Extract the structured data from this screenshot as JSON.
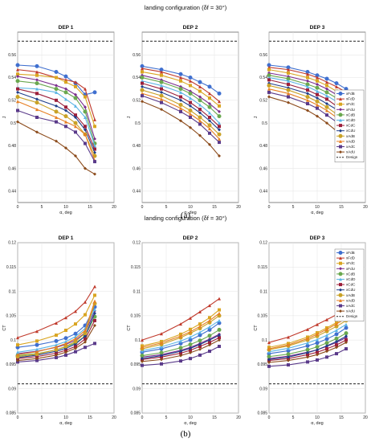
{
  "figure": {
    "part_a_label": "(a)",
    "part_b_label": "(b)"
  },
  "legend_entries": [
    "xFdB",
    "xFdD",
    "xFdC",
    "xFdU",
    "xCdB",
    "xCdD",
    "xCdC",
    "xCdU",
    "xAdB",
    "xAdD",
    "xAdC",
    "xAdU",
    "Design"
  ],
  "series_colors": [
    "#3f6fcf",
    "#c0392b",
    "#d9a521",
    "#7b2d8e",
    "#6aa84f",
    "#5ab4e5",
    "#9c1f3a",
    "#1f3f8a",
    "#c9a227",
    "#e67e22",
    "#5a3a8a",
    "#8b4a1a"
  ],
  "chart_data": [
    {
      "type": "line",
      "title": "landing configuration (δf = 30°)",
      "panel_title": "DEP 1",
      "xlabel": "α, deg",
      "ylabel": "J",
      "xlim": [
        0,
        20
      ],
      "ylim": [
        0.43,
        0.58
      ],
      "x_ticks": [
        0,
        5,
        10,
        15,
        20
      ],
      "y_ticks": [
        0.44,
        0.46,
        0.48,
        0.5,
        0.52,
        0.54,
        0.56
      ],
      "y_tick_labels": [
        "0.44",
        "0.46",
        "0.48",
        "0.5",
        "0.52",
        "0.54",
        "0.56"
      ],
      "design": 0.572,
      "x": [
        0,
        4,
        8,
        10,
        12,
        14,
        16
      ],
      "series": [
        {
          "values": [
            0.551,
            0.55,
            0.545,
            0.541,
            0.535,
            0.525,
            0.527
          ]
        },
        {
          "values": [
            0.547,
            0.545,
            0.54,
            0.538,
            0.536,
            0.53,
            0.503
          ]
        },
        {
          "values": [
            0.543,
            0.542,
            0.54,
            0.536,
            0.532,
            0.523,
            0.497
          ]
        },
        {
          "values": [
            0.541,
            0.538,
            0.533,
            0.53,
            0.525,
            0.514,
            0.486
          ]
        },
        {
          "values": [
            0.537,
            0.535,
            0.53,
            0.527,
            0.522,
            0.51,
            0.482
          ]
        },
        {
          "values": [
            0.531,
            0.53,
            0.527,
            0.521,
            0.515,
            0.505,
            0.48
          ]
        },
        {
          "values": [
            0.53,
            0.526,
            0.52,
            0.514,
            0.507,
            0.497,
            0.477
          ]
        },
        {
          "values": [
            0.527,
            0.521,
            0.515,
            0.511,
            0.505,
            0.494,
            0.474
          ]
        },
        {
          "values": [
            0.523,
            0.518,
            0.51,
            0.506,
            0.5,
            0.49,
            0.471
          ]
        },
        {
          "values": [
            0.519,
            0.512,
            0.505,
            0.501,
            0.497,
            0.49,
            0.467
          ]
        },
        {
          "values": [
            0.511,
            0.505,
            0.501,
            0.497,
            0.492,
            0.482,
            0.466
          ]
        },
        {
          "values": [
            0.501,
            0.492,
            0.484,
            0.478,
            0.471,
            0.46,
            0.455
          ]
        }
      ]
    },
    {
      "type": "line",
      "panel_title": "DEP 2",
      "xlabel": "α, deg",
      "ylabel": "J",
      "xlim": [
        0,
        20
      ],
      "ylim": [
        0.43,
        0.58
      ],
      "x_ticks": [
        0,
        5,
        10,
        15,
        20
      ],
      "y_ticks": [
        0.44,
        0.46,
        0.48,
        0.5,
        0.52,
        0.54,
        0.56
      ],
      "y_tick_labels": [
        "0.44",
        "0.46",
        "0.48",
        "0.5",
        "0.52",
        "0.54",
        "0.56"
      ],
      "design": 0.572,
      "x": [
        0,
        4,
        8,
        10,
        12,
        14,
        16
      ],
      "series": [
        {
          "values": [
            0.55,
            0.547,
            0.543,
            0.54,
            0.536,
            0.532,
            0.526
          ]
        },
        {
          "values": [
            0.548,
            0.545,
            0.54,
            0.537,
            0.532,
            0.526,
            0.519
          ]
        },
        {
          "values": [
            0.545,
            0.542,
            0.537,
            0.533,
            0.528,
            0.522,
            0.515
          ]
        },
        {
          "values": [
            0.542,
            0.538,
            0.532,
            0.528,
            0.523,
            0.517,
            0.51
          ]
        },
        {
          "values": [
            0.54,
            0.536,
            0.53,
            0.526,
            0.52,
            0.514,
            0.506
          ]
        },
        {
          "values": [
            0.537,
            0.533,
            0.527,
            0.522,
            0.516,
            0.509,
            0.5
          ]
        },
        {
          "values": [
            0.535,
            0.53,
            0.523,
            0.518,
            0.512,
            0.505,
            0.497
          ]
        },
        {
          "values": [
            0.532,
            0.527,
            0.52,
            0.515,
            0.509,
            0.502,
            0.494
          ]
        },
        {
          "values": [
            0.529,
            0.524,
            0.516,
            0.511,
            0.505,
            0.498,
            0.49
          ]
        },
        {
          "values": [
            0.526,
            0.521,
            0.513,
            0.508,
            0.502,
            0.495,
            0.486
          ]
        },
        {
          "values": [
            0.524,
            0.518,
            0.51,
            0.505,
            0.499,
            0.491,
            0.483
          ]
        },
        {
          "values": [
            0.519,
            0.512,
            0.502,
            0.496,
            0.489,
            0.481,
            0.471
          ]
        }
      ]
    },
    {
      "type": "line",
      "panel_title": "DEP 3",
      "xlabel": "α, deg",
      "ylabel": "J",
      "xlim": [
        0,
        20
      ],
      "ylim": [
        0.43,
        0.58
      ],
      "x_ticks": [
        0,
        5,
        10,
        15,
        20
      ],
      "y_ticks": [
        0.44,
        0.46,
        0.48,
        0.5,
        0.52,
        0.54,
        0.56
      ],
      "y_tick_labels": [
        "0.44",
        "0.46",
        "0.48",
        "0.5",
        "0.52",
        "0.54",
        "0.56"
      ],
      "design": 0.572,
      "legend": "inside-right",
      "x": [
        0,
        4,
        8,
        10,
        12,
        14,
        16
      ],
      "series": [
        {
          "values": [
            0.551,
            0.549,
            0.545,
            0.542,
            0.539,
            0.535,
            0.53
          ]
        },
        {
          "values": [
            0.549,
            0.547,
            0.543,
            0.54,
            0.536,
            0.532,
            0.527
          ]
        },
        {
          "values": [
            0.547,
            0.544,
            0.54,
            0.537,
            0.533,
            0.528,
            0.523
          ]
        },
        {
          "values": [
            0.544,
            0.541,
            0.537,
            0.534,
            0.53,
            0.525,
            0.519
          ]
        },
        {
          "values": [
            0.542,
            0.539,
            0.534,
            0.531,
            0.527,
            0.522,
            0.516
          ]
        },
        {
          "values": [
            0.54,
            0.537,
            0.532,
            0.528,
            0.524,
            0.519,
            0.513
          ]
        },
        {
          "values": [
            0.538,
            0.534,
            0.529,
            0.525,
            0.521,
            0.515,
            0.509
          ]
        },
        {
          "values": [
            0.535,
            0.531,
            0.526,
            0.522,
            0.517,
            0.512,
            0.505
          ]
        },
        {
          "values": [
            0.533,
            0.529,
            0.523,
            0.519,
            0.514,
            0.508,
            0.501
          ]
        },
        {
          "values": [
            0.53,
            0.526,
            0.52,
            0.516,
            0.511,
            0.505,
            0.498
          ]
        },
        {
          "values": [
            0.527,
            0.523,
            0.517,
            0.513,
            0.507,
            0.501,
            0.494
          ]
        },
        {
          "values": [
            0.523,
            0.518,
            0.511,
            0.506,
            0.5,
            0.493,
            0.485
          ]
        }
      ]
    },
    {
      "type": "line",
      "title": "landing configuration (δf = 30°)",
      "panel_title": "DEP 1",
      "xlabel": "α, deg",
      "ylabel": "CT",
      "xlim": [
        0,
        20
      ],
      "ylim": [
        0.085,
        0.12
      ],
      "x_ticks": [
        0,
        5,
        10,
        15,
        20
      ],
      "y_ticks": [
        0.085,
        0.09,
        0.095,
        0.1,
        0.105,
        0.11,
        0.115,
        0.12
      ],
      "y_tick_labels": [
        "0.085",
        "0.09",
        "0.095",
        "0.1",
        "0.105",
        "0.11",
        "0.115",
        "0.12"
      ],
      "design": 0.091,
      "x": [
        0,
        4,
        8,
        10,
        12,
        14,
        16
      ],
      "series": [
        {
          "values": [
            0.0985,
            0.099,
            0.0998,
            0.1004,
            0.1013,
            0.103,
            0.1068
          ]
        },
        {
          "values": [
            0.1005,
            0.1018,
            0.1035,
            0.1046,
            0.1059,
            0.1078,
            0.111
          ]
        },
        {
          "values": [
            0.099,
            0.0998,
            0.101,
            0.102,
            0.1033,
            0.1052,
            0.1092
          ]
        },
        {
          "values": [
            0.0972,
            0.0977,
            0.0985,
            0.0991,
            0.1,
            0.1015,
            0.106
          ]
        },
        {
          "values": [
            0.0968,
            0.0972,
            0.098,
            0.0986,
            0.0994,
            0.1008,
            0.1048
          ]
        },
        {
          "values": [
            0.0975,
            0.0981,
            0.099,
            0.0997,
            0.1007,
            0.1024,
            0.1063
          ]
        },
        {
          "values": [
            0.0962,
            0.0966,
            0.0973,
            0.0979,
            0.0987,
            0.1002,
            0.104
          ]
        },
        {
          "values": [
            0.0964,
            0.0969,
            0.0977,
            0.0983,
            0.0992,
            0.1008,
            0.1055
          ]
        },
        {
          "values": [
            0.0966,
            0.0971,
            0.098,
            0.0987,
            0.0997,
            0.1014,
            0.1075
          ]
        },
        {
          "values": [
            0.097,
            0.0976,
            0.0986,
            0.0993,
            0.1003,
            0.102,
            0.108
          ]
        },
        {
          "values": [
            0.0955,
            0.0958,
            0.0964,
            0.0969,
            0.0976,
            0.0985,
            0.0993
          ]
        },
        {
          "values": [
            0.0958,
            0.0962,
            0.0969,
            0.0975,
            0.0983,
            0.0996,
            0.103
          ]
        }
      ]
    },
    {
      "type": "line",
      "panel_title": "DEP 2",
      "xlabel": "α, deg",
      "ylabel": "CT",
      "xlim": [
        0,
        20
      ],
      "ylim": [
        0.085,
        0.12
      ],
      "x_ticks": [
        0,
        5,
        10,
        15,
        20
      ],
      "y_ticks": [
        0.085,
        0.09,
        0.095,
        0.1,
        0.105,
        0.11,
        0.115,
        0.12
      ],
      "y_tick_labels": [
        "0.085",
        "0.09",
        "0.095",
        "0.1",
        "0.105",
        "0.11",
        "0.115",
        "0.12"
      ],
      "design": 0.091,
      "x": [
        0,
        4,
        8,
        10,
        12,
        14,
        16
      ],
      "series": [
        {
          "values": [
            0.0975,
            0.0982,
            0.0993,
            0.1,
            0.101,
            0.1021,
            0.1035
          ]
        },
        {
          "values": [
            0.1,
            0.1013,
            0.1033,
            0.1045,
            0.1058,
            0.1071,
            0.1085
          ]
        },
        {
          "values": [
            0.0988,
            0.0997,
            0.1012,
            0.1022,
            0.1033,
            0.1046,
            0.1062
          ]
        },
        {
          "values": [
            0.0965,
            0.097,
            0.0979,
            0.0985,
            0.0993,
            0.1002,
            0.1012
          ]
        },
        {
          "values": [
            0.0968,
            0.0974,
            0.0984,
            0.0991,
            0.0999,
            0.1009,
            0.1021
          ]
        },
        {
          "values": [
            0.0978,
            0.0986,
            0.0998,
            0.1006,
            0.1016,
            0.1027,
            0.104
          ]
        },
        {
          "values": [
            0.096,
            0.0965,
            0.0973,
            0.0979,
            0.0987,
            0.0995,
            0.1005
          ]
        },
        {
          "values": [
            0.0962,
            0.0968,
            0.0977,
            0.0983,
            0.0991,
            0.1,
            0.101
          ]
        },
        {
          "values": [
            0.0982,
            0.0991,
            0.1005,
            0.1014,
            0.1024,
            0.1036,
            0.105
          ]
        },
        {
          "values": [
            0.0985,
            0.0994,
            0.1008,
            0.1017,
            0.1028,
            0.104,
            0.1055
          ]
        },
        {
          "values": [
            0.0948,
            0.0951,
            0.0957,
            0.0962,
            0.0969,
            0.0977,
            0.0987
          ]
        },
        {
          "values": [
            0.0956,
            0.096,
            0.0968,
            0.0974,
            0.0981,
            0.099,
            0.1
          ]
        }
      ]
    },
    {
      "type": "line",
      "panel_title": "DEP 3",
      "xlabel": "α, deg",
      "ylabel": "CT",
      "xlim": [
        0,
        20
      ],
      "ylim": [
        0.085,
        0.12
      ],
      "x_ticks": [
        0,
        5,
        10,
        15,
        20
      ],
      "y_ticks": [
        0.085,
        0.09,
        0.095,
        0.1,
        0.105,
        0.11,
        0.115,
        0.12
      ],
      "y_tick_labels": [
        "0.085",
        "0.09",
        "0.095",
        "0.1",
        "0.105",
        "0.11",
        "0.115",
        "0.12"
      ],
      "design": 0.091,
      "legend": "inside-right",
      "x": [
        0,
        4,
        8,
        10,
        12,
        14,
        16
      ],
      "series": [
        {
          "values": [
            0.0972,
            0.0978,
            0.0988,
            0.0994,
            0.1002,
            0.1012,
            0.1025
          ]
        },
        {
          "values": [
            0.0995,
            0.1006,
            0.1022,
            0.1032,
            0.1042,
            0.1052,
            0.1062
          ]
        },
        {
          "values": [
            0.0985,
            0.0993,
            0.1006,
            0.1015,
            0.1025,
            0.1036,
            0.1048
          ]
        },
        {
          "values": [
            0.0962,
            0.0967,
            0.0975,
            0.098,
            0.0987,
            0.0995,
            0.1005
          ]
        },
        {
          "values": [
            0.0966,
            0.0971,
            0.098,
            0.0986,
            0.0994,
            0.1003,
            0.1014
          ]
        },
        {
          "values": [
            0.0976,
            0.0983,
            0.0994,
            0.1001,
            0.101,
            0.102,
            0.1032
          ]
        },
        {
          "values": [
            0.0958,
            0.0962,
            0.097,
            0.0975,
            0.0982,
            0.099,
            0.1
          ]
        },
        {
          "values": [
            0.096,
            0.0965,
            0.0974,
            0.098,
            0.0988,
            0.0997,
            0.1008
          ]
        },
        {
          "values": [
            0.098,
            0.0988,
            0.1,
            0.1008,
            0.1018,
            0.1028,
            0.104
          ]
        },
        {
          "values": [
            0.0982,
            0.099,
            0.1003,
            0.1012,
            0.1022,
            0.1033,
            0.1045
          ]
        },
        {
          "values": [
            0.0946,
            0.0949,
            0.0955,
            0.0959,
            0.0965,
            0.0972,
            0.0982
          ]
        },
        {
          "values": [
            0.0954,
            0.0958,
            0.0965,
            0.097,
            0.0977,
            0.0985,
            0.0995
          ]
        }
      ]
    }
  ]
}
